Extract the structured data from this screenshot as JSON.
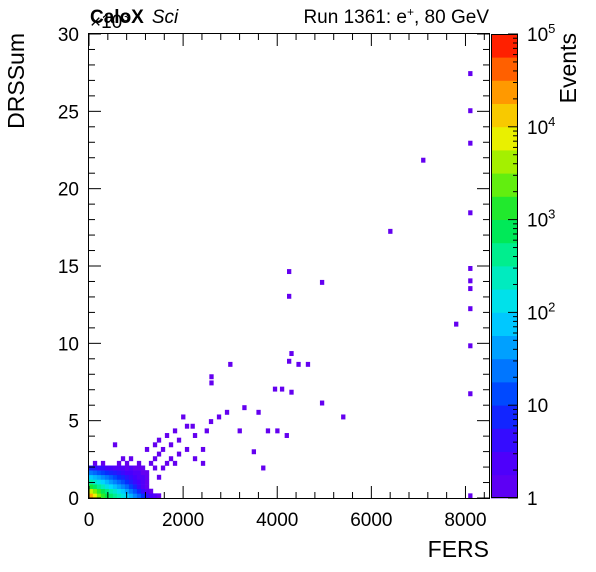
{
  "header": {
    "experiment_bold": "CaloX",
    "experiment_italic": "Sci",
    "run_prefix": "Run 1361: e",
    "run_sup": "+",
    "run_suffix": ", 80 GeV"
  },
  "chart_data": {
    "type": "heatmap",
    "title": "Run 1361: e+, 80 GeV",
    "xlabel": "FERS",
    "ylabel": "DRSSum",
    "y_multiplier": "×10^3",
    "xlim": [
      0,
      8500
    ],
    "ylim": [
      0,
      30000
    ],
    "x_ticks": [
      0,
      2000,
      4000,
      6000,
      8000
    ],
    "y_ticks": [
      0,
      5,
      10,
      15,
      20,
      25,
      30
    ],
    "colorbar": {
      "label": "Events",
      "scale": "log",
      "range": [
        1,
        100000
      ],
      "tick_labels": [
        {
          "base": "1",
          "exp": ""
        },
        {
          "base": "10",
          "exp": ""
        },
        {
          "base": "10",
          "exp": "2"
        },
        {
          "base": "10",
          "exp": "3"
        },
        {
          "base": "10",
          "exp": "4"
        },
        {
          "base": "10",
          "exp": "5"
        }
      ]
    },
    "bin_width": {
      "x": 85,
      "y": 300
    },
    "bins": [
      {
        "x": 40,
        "y": 150,
        "count": 20000
      },
      {
        "x": 125,
        "y": 150,
        "count": 8000
      },
      {
        "x": 210,
        "y": 150,
        "count": 3000
      },
      {
        "x": 295,
        "y": 150,
        "count": 1500
      },
      {
        "x": 380,
        "y": 150,
        "count": 900
      },
      {
        "x": 465,
        "y": 150,
        "count": 600
      },
      {
        "x": 550,
        "y": 150,
        "count": 400
      },
      {
        "x": 635,
        "y": 150,
        "count": 250
      },
      {
        "x": 720,
        "y": 150,
        "count": 150
      },
      {
        "x": 805,
        "y": 150,
        "count": 90
      },
      {
        "x": 890,
        "y": 150,
        "count": 55
      },
      {
        "x": 975,
        "y": 150,
        "count": 30
      },
      {
        "x": 1060,
        "y": 150,
        "count": 18
      },
      {
        "x": 1145,
        "y": 150,
        "count": 10
      },
      {
        "x": 1230,
        "y": 150,
        "count": 5
      },
      {
        "x": 1315,
        "y": 150,
        "count": 3
      },
      {
        "x": 1400,
        "y": 150,
        "count": 2
      },
      {
        "x": 1485,
        "y": 150,
        "count": 1
      },
      {
        "x": 40,
        "y": 450,
        "count": 6000
      },
      {
        "x": 125,
        "y": 450,
        "count": 3000
      },
      {
        "x": 210,
        "y": 450,
        "count": 1500
      },
      {
        "x": 295,
        "y": 450,
        "count": 800
      },
      {
        "x": 380,
        "y": 450,
        "count": 500
      },
      {
        "x": 465,
        "y": 450,
        "count": 300
      },
      {
        "x": 550,
        "y": 450,
        "count": 200
      },
      {
        "x": 635,
        "y": 450,
        "count": 120
      },
      {
        "x": 720,
        "y": 450,
        "count": 80
      },
      {
        "x": 805,
        "y": 450,
        "count": 45
      },
      {
        "x": 890,
        "y": 450,
        "count": 25
      },
      {
        "x": 975,
        "y": 450,
        "count": 15
      },
      {
        "x": 1060,
        "y": 450,
        "count": 8
      },
      {
        "x": 1145,
        "y": 450,
        "count": 4
      },
      {
        "x": 1230,
        "y": 450,
        "count": 2
      },
      {
        "x": 1315,
        "y": 450,
        "count": 1
      },
      {
        "x": 40,
        "y": 750,
        "count": 1200
      },
      {
        "x": 125,
        "y": 750,
        "count": 700
      },
      {
        "x": 210,
        "y": 750,
        "count": 400
      },
      {
        "x": 295,
        "y": 750,
        "count": 250
      },
      {
        "x": 380,
        "y": 750,
        "count": 150
      },
      {
        "x": 465,
        "y": 750,
        "count": 100
      },
      {
        "x": 550,
        "y": 750,
        "count": 70
      },
      {
        "x": 635,
        "y": 750,
        "count": 45
      },
      {
        "x": 720,
        "y": 750,
        "count": 30
      },
      {
        "x": 805,
        "y": 750,
        "count": 20
      },
      {
        "x": 890,
        "y": 750,
        "count": 12
      },
      {
        "x": 975,
        "y": 750,
        "count": 7
      },
      {
        "x": 1060,
        "y": 750,
        "count": 4
      },
      {
        "x": 1145,
        "y": 750,
        "count": 2
      },
      {
        "x": 1230,
        "y": 750,
        "count": 1
      },
      {
        "x": 40,
        "y": 1050,
        "count": 300
      },
      {
        "x": 125,
        "y": 1050,
        "count": 200
      },
      {
        "x": 210,
        "y": 1050,
        "count": 130
      },
      {
        "x": 295,
        "y": 1050,
        "count": 90
      },
      {
        "x": 380,
        "y": 1050,
        "count": 60
      },
      {
        "x": 465,
        "y": 1050,
        "count": 40
      },
      {
        "x": 550,
        "y": 1050,
        "count": 28
      },
      {
        "x": 635,
        "y": 1050,
        "count": 20
      },
      {
        "x": 720,
        "y": 1050,
        "count": 14
      },
      {
        "x": 805,
        "y": 1050,
        "count": 9
      },
      {
        "x": 890,
        "y": 1050,
        "count": 6
      },
      {
        "x": 975,
        "y": 1050,
        "count": 4
      },
      {
        "x": 1060,
        "y": 1050,
        "count": 3
      },
      {
        "x": 1145,
        "y": 1050,
        "count": 2
      },
      {
        "x": 1230,
        "y": 1050,
        "count": 1
      },
      {
        "x": 40,
        "y": 1350,
        "count": 80
      },
      {
        "x": 125,
        "y": 1350,
        "count": 60
      },
      {
        "x": 210,
        "y": 1350,
        "count": 45
      },
      {
        "x": 295,
        "y": 1350,
        "count": 32
      },
      {
        "x": 380,
        "y": 1350,
        "count": 24
      },
      {
        "x": 465,
        "y": 1350,
        "count": 18
      },
      {
        "x": 550,
        "y": 1350,
        "count": 13
      },
      {
        "x": 635,
        "y": 1350,
        "count": 9
      },
      {
        "x": 720,
        "y": 1350,
        "count": 7
      },
      {
        "x": 805,
        "y": 1350,
        "count": 5
      },
      {
        "x": 890,
        "y": 1350,
        "count": 4
      },
      {
        "x": 975,
        "y": 1350,
        "count": 3
      },
      {
        "x": 1060,
        "y": 1350,
        "count": 2
      },
      {
        "x": 1145,
        "y": 1350,
        "count": 2
      },
      {
        "x": 1230,
        "y": 1350,
        "count": 1
      },
      {
        "x": 1485,
        "y": 1350,
        "count": 1
      },
      {
        "x": 40,
        "y": 1650,
        "count": 25
      },
      {
        "x": 125,
        "y": 1650,
        "count": 20
      },
      {
        "x": 210,
        "y": 1650,
        "count": 15
      },
      {
        "x": 295,
        "y": 1650,
        "count": 12
      },
      {
        "x": 380,
        "y": 1650,
        "count": 9
      },
      {
        "x": 465,
        "y": 1650,
        "count": 7
      },
      {
        "x": 550,
        "y": 1650,
        "count": 6
      },
      {
        "x": 635,
        "y": 1650,
        "count": 5
      },
      {
        "x": 720,
        "y": 1650,
        "count": 4
      },
      {
        "x": 805,
        "y": 1650,
        "count": 3
      },
      {
        "x": 890,
        "y": 1650,
        "count": 3
      },
      {
        "x": 975,
        "y": 1650,
        "count": 2
      },
      {
        "x": 1060,
        "y": 1650,
        "count": 2
      },
      {
        "x": 1145,
        "y": 1650,
        "count": 1
      },
      {
        "x": 1230,
        "y": 1650,
        "count": 1
      },
      {
        "x": 40,
        "y": 1950,
        "count": 6
      },
      {
        "x": 125,
        "y": 1950,
        "count": 5
      },
      {
        "x": 210,
        "y": 1950,
        "count": 4
      },
      {
        "x": 295,
        "y": 1950,
        "count": 4
      },
      {
        "x": 380,
        "y": 1950,
        "count": 3
      },
      {
        "x": 465,
        "y": 1950,
        "count": 3
      },
      {
        "x": 550,
        "y": 1950,
        "count": 2
      },
      {
        "x": 635,
        "y": 1950,
        "count": 2
      },
      {
        "x": 720,
        "y": 1950,
        "count": 2
      },
      {
        "x": 805,
        "y": 1950,
        "count": 1
      },
      {
        "x": 890,
        "y": 1950,
        "count": 2
      },
      {
        "x": 975,
        "y": 1950,
        "count": 1
      },
      {
        "x": 1060,
        "y": 1950,
        "count": 1
      },
      {
        "x": 1145,
        "y": 1950,
        "count": 1
      },
      {
        "x": 1400,
        "y": 1950,
        "count": 1
      },
      {
        "x": 125,
        "y": 2250,
        "count": 1
      },
      {
        "x": 295,
        "y": 2250,
        "count": 1
      },
      {
        "x": 635,
        "y": 2250,
        "count": 1
      },
      {
        "x": 805,
        "y": 2250,
        "count": 1
      },
      {
        "x": 1060,
        "y": 2250,
        "count": 1
      },
      {
        "x": 1315,
        "y": 2250,
        "count": 1
      },
      {
        "x": 720,
        "y": 2550,
        "count": 1
      },
      {
        "x": 890,
        "y": 2550,
        "count": 1
      },
      {
        "x": 1400,
        "y": 2550,
        "count": 1
      },
      {
        "x": 1485,
        "y": 2850,
        "count": 1
      },
      {
        "x": 1230,
        "y": 3150,
        "count": 1
      },
      {
        "x": 550,
        "y": 3450,
        "count": 1
      },
      {
        "x": 1570,
        "y": 1950,
        "count": 1
      },
      {
        "x": 1655,
        "y": 2250,
        "count": 1
      },
      {
        "x": 1740,
        "y": 2550,
        "count": 1
      },
      {
        "x": 1825,
        "y": 2250,
        "count": 1
      },
      {
        "x": 1910,
        "y": 2850,
        "count": 1
      },
      {
        "x": 2080,
        "y": 3150,
        "count": 1
      },
      {
        "x": 2250,
        "y": 2550,
        "count": 1
      },
      {
        "x": 2420,
        "y": 2250,
        "count": 1
      },
      {
        "x": 1400,
        "y": 3450,
        "count": 1
      },
      {
        "x": 1485,
        "y": 3750,
        "count": 1
      },
      {
        "x": 1570,
        "y": 3150,
        "count": 1
      },
      {
        "x": 1655,
        "y": 4050,
        "count": 1
      },
      {
        "x": 1740,
        "y": 3450,
        "count": 1
      },
      {
        "x": 1825,
        "y": 4350,
        "count": 1
      },
      {
        "x": 1910,
        "y": 3750,
        "count": 1
      },
      {
        "x": 2080,
        "y": 4650,
        "count": 1
      },
      {
        "x": 2250,
        "y": 4050,
        "count": 1
      },
      {
        "x": 2420,
        "y": 3150,
        "count": 1
      },
      {
        "x": 2590,
        "y": 4950,
        "count": 1
      },
      {
        "x": 2760,
        "y": 5250,
        "count": 1
      },
      {
        "x": 2930,
        "y": 5550,
        "count": 1
      },
      {
        "x": 2000,
        "y": 5250,
        "count": 1
      },
      {
        "x": 2200,
        "y": 4650,
        "count": 1
      },
      {
        "x": 2500,
        "y": 4350,
        "count": 1
      },
      {
        "x": 3200,
        "y": 4350,
        "count": 1
      },
      {
        "x": 3300,
        "y": 5850,
        "count": 1
      },
      {
        "x": 3500,
        "y": 3000,
        "count": 1
      },
      {
        "x": 3600,
        "y": 5550,
        "count": 1
      },
      {
        "x": 3800,
        "y": 4350,
        "count": 1
      },
      {
        "x": 4000,
        "y": 4350,
        "count": 1
      },
      {
        "x": 4200,
        "y": 4050,
        "count": 1
      },
      {
        "x": 3700,
        "y": 1950,
        "count": 1
      },
      {
        "x": 2600,
        "y": 7450,
        "count": 1
      },
      {
        "x": 2600,
        "y": 7850,
        "count": 1
      },
      {
        "x": 3000,
        "y": 8650,
        "count": 1
      },
      {
        "x": 3950,
        "y": 7050,
        "count": 1
      },
      {
        "x": 4100,
        "y": 7050,
        "count": 1
      },
      {
        "x": 4250,
        "y": 8850,
        "count": 1
      },
      {
        "x": 4300,
        "y": 9350,
        "count": 1
      },
      {
        "x": 4450,
        "y": 8650,
        "count": 1
      },
      {
        "x": 4300,
        "y": 6850,
        "count": 1
      },
      {
        "x": 4650,
        "y": 8650,
        "count": 1
      },
      {
        "x": 4950,
        "y": 6150,
        "count": 1
      },
      {
        "x": 5400,
        "y": 5250,
        "count": 1
      },
      {
        "x": 4250,
        "y": 13050,
        "count": 1
      },
      {
        "x": 4250,
        "y": 14650,
        "count": 1
      },
      {
        "x": 4950,
        "y": 13950,
        "count": 1
      },
      {
        "x": 6400,
        "y": 17250,
        "count": 1
      },
      {
        "x": 7100,
        "y": 21850,
        "count": 1
      },
      {
        "x": 7800,
        "y": 11250,
        "count": 1
      },
      {
        "x": 8100,
        "y": 150,
        "count": 1
      },
      {
        "x": 8100,
        "y": 6750,
        "count": 1
      },
      {
        "x": 8100,
        "y": 9850,
        "count": 1
      },
      {
        "x": 8100,
        "y": 12250,
        "count": 1
      },
      {
        "x": 8100,
        "y": 13550,
        "count": 1
      },
      {
        "x": 8100,
        "y": 14050,
        "count": 1
      },
      {
        "x": 8100,
        "y": 14850,
        "count": 1
      },
      {
        "x": 8100,
        "y": 18450,
        "count": 1
      },
      {
        "x": 8100,
        "y": 22950,
        "count": 1
      },
      {
        "x": 8100,
        "y": 25050,
        "count": 1
      },
      {
        "x": 8100,
        "y": 27450,
        "count": 1
      }
    ]
  }
}
